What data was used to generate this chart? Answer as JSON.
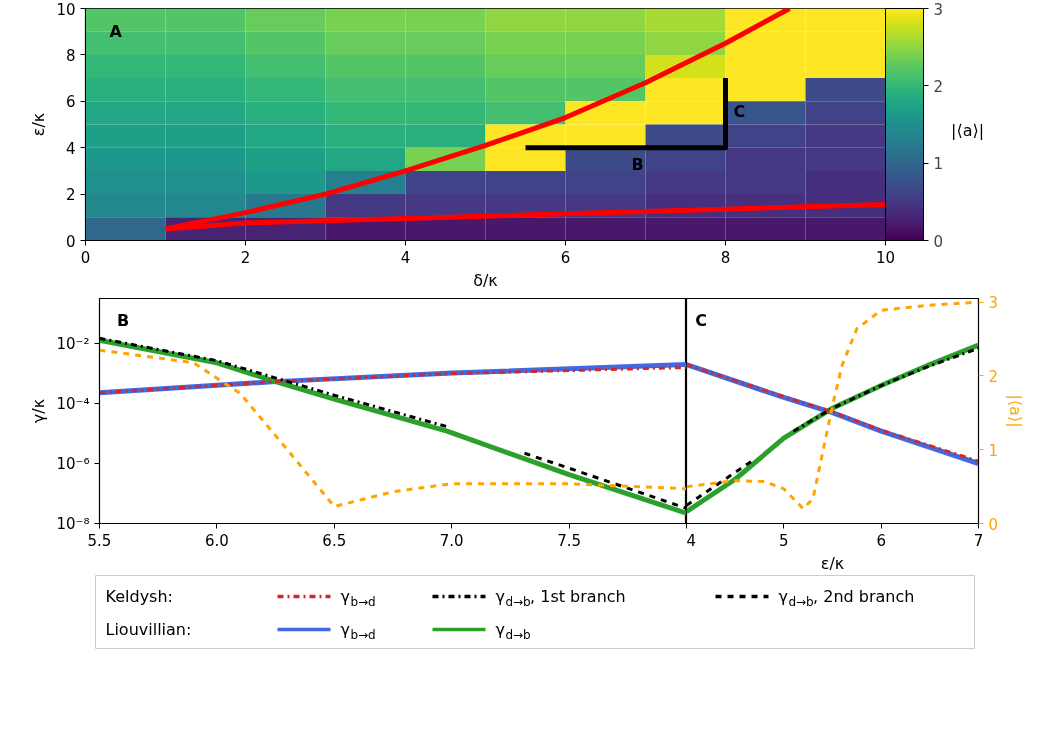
{
  "chart_data": [
    {
      "type": "heatmap",
      "xlabel": "δ/κ",
      "ylabel": "ε/κ",
      "clabel": "|⟨a⟩|",
      "xlim": [
        0,
        10
      ],
      "ylim": [
        0,
        10
      ],
      "xticks": [
        0,
        2,
        4,
        6,
        8,
        10
      ],
      "yticks": [
        0,
        2,
        4,
        6,
        8,
        10
      ],
      "clim": [
        0,
        3
      ],
      "cticks": [
        0,
        1,
        2,
        3
      ],
      "x": [
        0.5,
        1.5,
        2.5,
        3.5,
        4.5,
        5.5,
        6.5,
        7.5,
        8.5,
        9.5
      ],
      "y": [
        9.5,
        8.5,
        7.5,
        6.5,
        5.5,
        4.5,
        3.5,
        2.5,
        1.5,
        0.5
      ],
      "cells": [
        [
          2.2,
          2.2,
          2.3,
          2.4,
          2.4,
          2.5,
          2.5,
          2.6,
          3.0,
          3.0
        ],
        [
          2.1,
          2.1,
          2.2,
          2.3,
          2.3,
          2.4,
          2.4,
          2.5,
          3.0,
          3.0
        ],
        [
          2.0,
          2.0,
          2.1,
          2.2,
          2.2,
          2.3,
          2.3,
          2.8,
          3.0,
          3.0
        ],
        [
          1.9,
          1.9,
          2.0,
          2.1,
          2.1,
          2.2,
          2.2,
          3.0,
          3.0,
          0.7
        ],
        [
          1.8,
          1.8,
          1.9,
          2.0,
          2.0,
          2.1,
          3.0,
          3.0,
          0.8,
          0.6
        ],
        [
          1.7,
          1.7,
          1.8,
          1.9,
          1.9,
          3.0,
          3.0,
          0.7,
          0.6,
          0.5
        ],
        [
          1.6,
          1.6,
          1.7,
          1.8,
          2.4,
          3.0,
          0.7,
          0.6,
          0.5,
          0.5
        ],
        [
          1.5,
          1.5,
          1.6,
          1.3,
          0.6,
          0.6,
          0.6,
          0.5,
          0.5,
          0.4
        ],
        [
          1.4,
          1.4,
          1.2,
          0.5,
          0.5,
          0.5,
          0.5,
          0.4,
          0.4,
          0.4
        ],
        [
          1.0,
          0.3,
          0.3,
          0.2,
          0.2,
          0.2,
          0.2,
          0.2,
          0.2,
          0.2
        ]
      ],
      "series": [
        {
          "type": "line",
          "color": "#ff0000",
          "x": [
            1,
            2,
            3,
            4,
            5,
            6,
            7,
            8,
            8.8
          ],
          "values": [
            0.5,
            1.2,
            2.0,
            3.0,
            4.1,
            5.3,
            6.8,
            8.5,
            10
          ]
        },
        {
          "type": "line",
          "color": "#ff0000",
          "x": [
            1,
            2,
            3,
            4,
            5,
            6,
            7,
            8,
            9,
            10
          ],
          "values": [
            0.5,
            0.75,
            0.85,
            0.95,
            1.05,
            1.15,
            1.25,
            1.35,
            1.45,
            1.55
          ]
        },
        {
          "type": "line",
          "color": "#000000",
          "x": [
            5.5,
            8,
            8
          ],
          "values": [
            4,
            4,
            7
          ]
        }
      ],
      "annotations": [
        "A",
        {
          "text": "B",
          "x": 6.9,
          "y": 4
        },
        {
          "text": "C",
          "x": 8,
          "y": 5.5
        }
      ]
    },
    {
      "type": "line",
      "ylabel": "γ/κ",
      "log": "y",
      "xlim": [
        5.5,
        8
      ],
      "ylim": [
        1e-08,
        0.32
      ],
      "y2lim": [
        0,
        3.05
      ],
      "xticks": [
        5.5,
        {
          "value": 6,
          "label": "6.0"
        },
        6.5,
        {
          "value": 7,
          "label": "7.0"
        },
        7.5,
        {
          "value": 8,
          "label": null
        }
      ],
      "yticks": [
        {
          "value": 1e-08,
          "label": "10⁻⁸"
        },
        {
          "value": 1e-06,
          "label": "10⁻⁶"
        },
        {
          "value": 0.0001,
          "label": "10⁻⁴"
        },
        {
          "value": 0.01,
          "label": "10⁻²"
        }
      ],
      "legend": "bottom",
      "series": [
        {
          "name": "γ$_{b→d}$",
          "color": "#d62728",
          "line_style": "dashdot",
          "x": [
            5.5,
            6.25,
            7,
            8
          ],
          "values": [
            0.00023,
            0.00054,
            0.001,
            0.0016
          ]
        },
        {
          "name": "γ$_{d→b}$, 1st branch",
          "color": "#000000",
          "line_style": "dashdot",
          "x": [
            5.5,
            6,
            6.5,
            6.98
          ],
          "values": [
            0.015,
            0.0027,
            0.00019,
            1.7e-05
          ]
        },
        {
          "name": "γ$_{d→b}$, 2nd branch",
          "color": "#000000",
          "line_style": "dashed",
          "x": [
            7.31,
            7.5,
            8
          ],
          "values": [
            2.2e-06,
            7e-07,
            3.2e-08
          ]
        },
        {
          "name": "γ$_{b→d}$",
          "color": "#4169e1",
          "line_style": "solid",
          "x": [
            5.5,
            6.25,
            7,
            8
          ],
          "values": [
            0.00023,
            0.00054,
            0.00105,
            0.002
          ]
        },
        {
          "name": "γ$_{d→b}$",
          "color": "#2ca02c",
          "line_style": "solid",
          "x": [
            5.5,
            6,
            6.25,
            6.5,
            6.98,
            7.5,
            8
          ],
          "values": [
            0.013,
            0.0023,
            0.00054,
            0.00014,
            1.2e-05,
            4.3e-07,
            2.2e-08
          ]
        },
        {
          "color": "#ffa500",
          "line_style": "dashed",
          "axis": "y2",
          "x": [
            5.5,
            5.9,
            6.1,
            6.3,
            6.5,
            6.75,
            7,
            7.5,
            8
          ],
          "values": [
            2.35,
            2.18,
            1.76,
            1.0,
            0.23,
            0.43,
            0.54,
            0.54,
            0.47
          ]
        }
      ],
      "annotations": [
        "B",
        "Keldysh:",
        "Liouvillian:"
      ]
    },
    {
      "type": "line",
      "xlabel": "ε/κ",
      "y2label": "|⟨a⟩|",
      "log": "y",
      "xlim": [
        4,
        7
      ],
      "ylim": [
        1e-08,
        0.32
      ],
      "y2lim": [
        0,
        3.05
      ],
      "xticks": [
        4,
        5,
        6,
        7
      ],
      "y2ticks": [
        0,
        1,
        2,
        3
      ],
      "series": [
        {
          "color": "#4169e1",
          "line_style": "solid",
          "x": [
            4,
            5,
            5.5,
            6,
            7
          ],
          "values": [
            0.002,
            0.00016,
            5e-05,
            1.2e-05,
            1e-06
          ]
        },
        {
          "color": "#2ca02c",
          "line_style": "solid",
          "x": [
            4,
            4.5,
            5,
            5.5,
            6,
            6.5,
            7
          ],
          "values": [
            2.5e-08,
            3e-07,
            7e-06,
            7e-05,
            0.0004,
            0.002,
            0.009
          ]
        },
        {
          "color": "#d62728",
          "line_style": "dashdot",
          "x": [
            4,
            5,
            5.5,
            6,
            7
          ],
          "values": [
            0.002,
            0.00017,
            5.2e-05,
            1.3e-05,
            1.2e-06
          ]
        },
        {
          "color": "#000000",
          "line_style": "dashdot",
          "x": [
            5.1,
            5.5,
            6,
            6.5,
            7
          ],
          "values": [
            1.2e-05,
            7e-05,
            0.0004,
            0.0018,
            0.007
          ]
        },
        {
          "color": "#000000",
          "line_style": "dashed",
          "x": [
            4,
            4.7
          ],
          "values": [
            4e-08,
            1.4e-06
          ]
        },
        {
          "color": "#ffa500",
          "line_style": "dashed",
          "axis": "y2",
          "x": [
            4,
            4.5,
            4.8,
            5.0,
            5.2,
            5.3,
            5.4,
            5.5,
            5.6,
            5.75,
            6,
            6.5,
            7
          ],
          "values": [
            0.5,
            0.58,
            0.57,
            0.47,
            0.2,
            0.34,
            0.97,
            1.6,
            2.15,
            2.64,
            2.89,
            2.96,
            3.0
          ]
        }
      ],
      "annotations": [
        "C"
      ]
    }
  ]
}
